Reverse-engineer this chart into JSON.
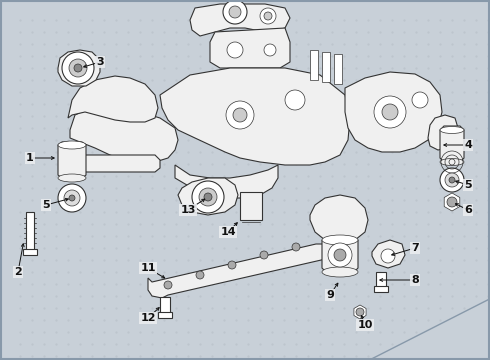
{
  "bg_color": "#c8d0d8",
  "inner_bg": "#eaecef",
  "border_color": "#8899aa",
  "fig_width": 4.9,
  "fig_height": 3.6,
  "dpi": 100,
  "frame_color": "#333333",
  "fill_frame": "#f0f0f0",
  "fill_white": "#ffffff",
  "lw_main": 0.8,
  "lw_thin": 0.5,
  "label_fontsize": 8,
  "label_color": "#111111",
  "arrow_color": "#111111"
}
